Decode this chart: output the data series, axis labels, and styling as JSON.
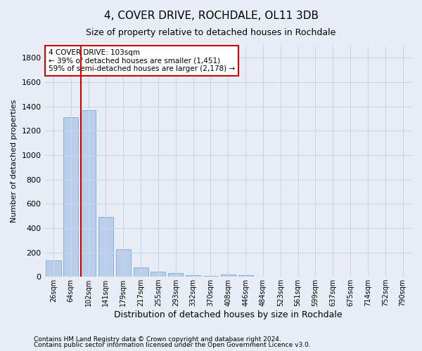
{
  "title": "4, COVER DRIVE, ROCHDALE, OL11 3DB",
  "subtitle": "Size of property relative to detached houses in Rochdale",
  "xlabel": "Distribution of detached houses by size in Rochdale",
  "ylabel": "Number of detached properties",
  "footnote1": "Contains HM Land Registry data © Crown copyright and database right 2024.",
  "footnote2": "Contains public sector information licensed under the Open Government Licence v3.0.",
  "annotation_line1": "4 COVER DRIVE: 103sqm",
  "annotation_line2": "← 39% of detached houses are smaller (1,451)",
  "annotation_line3": "59% of semi-detached houses are larger (2,178) →",
  "bar_color": "#b8ceea",
  "bar_edge_color": "#7aaad0",
  "redline_value_index": 2,
  "categories": [
    "26sqm",
    "64sqm",
    "102sqm",
    "141sqm",
    "179sqm",
    "217sqm",
    "255sqm",
    "293sqm",
    "332sqm",
    "370sqm",
    "408sqm",
    "446sqm",
    "484sqm",
    "523sqm",
    "561sqm",
    "599sqm",
    "637sqm",
    "675sqm",
    "714sqm",
    "752sqm",
    "790sqm"
  ],
  "values": [
    133,
    1310,
    1370,
    490,
    225,
    75,
    42,
    27,
    15,
    5,
    20,
    15,
    0,
    0,
    0,
    0,
    0,
    0,
    0,
    0,
    0
  ],
  "redline_color": "#cc0000",
  "ylim": [
    0,
    1900
  ],
  "yticks": [
    0,
    200,
    400,
    600,
    800,
    1000,
    1200,
    1400,
    1600,
    1800
  ],
  "grid_color": "#c8d4e8",
  "background_color": "#e8edf5",
  "plot_bg_color": "#e8edf5",
  "title_fontsize": 11,
  "subtitle_fontsize": 9,
  "ylabel_fontsize": 8,
  "xlabel_fontsize": 9,
  "tick_fontsize": 8,
  "xtick_fontsize": 7,
  "annot_fontsize": 7.5,
  "footnote_fontsize": 6.5
}
